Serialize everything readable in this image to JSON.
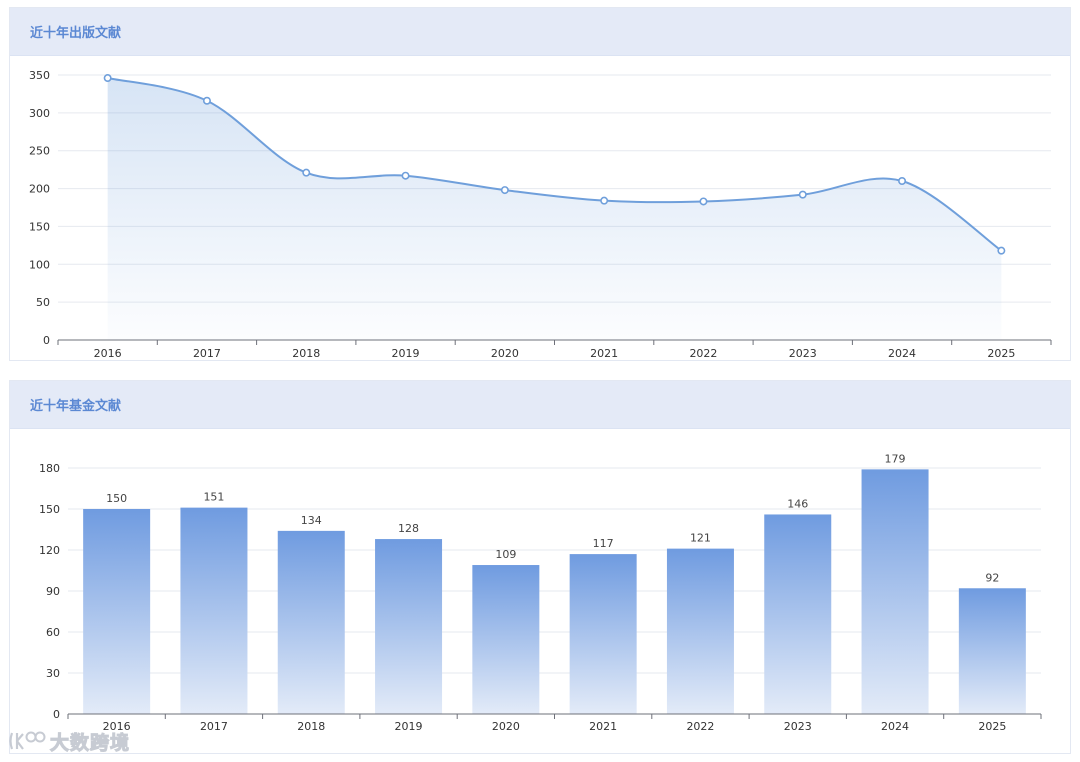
{
  "panels": {
    "publications_title": "近十年出版文献",
    "funding_title": "近十年基金文献"
  },
  "watermark": {
    "text": "大数跨境"
  },
  "colors": {
    "line": "#6f9fdb",
    "bar_top": "#6f9be0",
    "bar_bottom": "#e3ebf8",
    "header_bg": "#e4eaf7",
    "title": "#5b88d3"
  },
  "chart_data": [
    {
      "type": "line",
      "smooth": true,
      "area_fill": true,
      "categories": [
        "2016",
        "2017",
        "2018",
        "2019",
        "2020",
        "2021",
        "2022",
        "2023",
        "2024",
        "2025"
      ],
      "values": [
        346,
        316,
        221,
        217,
        198,
        184,
        183,
        192,
        210,
        118
      ],
      "ylim": [
        0,
        350
      ],
      "yticks": [
        0,
        50,
        100,
        150,
        200,
        250,
        300,
        350
      ],
      "grid": true
    },
    {
      "type": "bar",
      "categories": [
        "2016",
        "2017",
        "2018",
        "2019",
        "2020",
        "2021",
        "2022",
        "2023",
        "2024",
        "2025"
      ],
      "values": [
        150,
        151,
        134,
        128,
        109,
        117,
        121,
        146,
        179,
        92
      ],
      "ylim": [
        0,
        180
      ],
      "yticks": [
        0,
        30,
        60,
        90,
        120,
        150,
        180
      ],
      "grid": true,
      "data_labels": true
    }
  ]
}
